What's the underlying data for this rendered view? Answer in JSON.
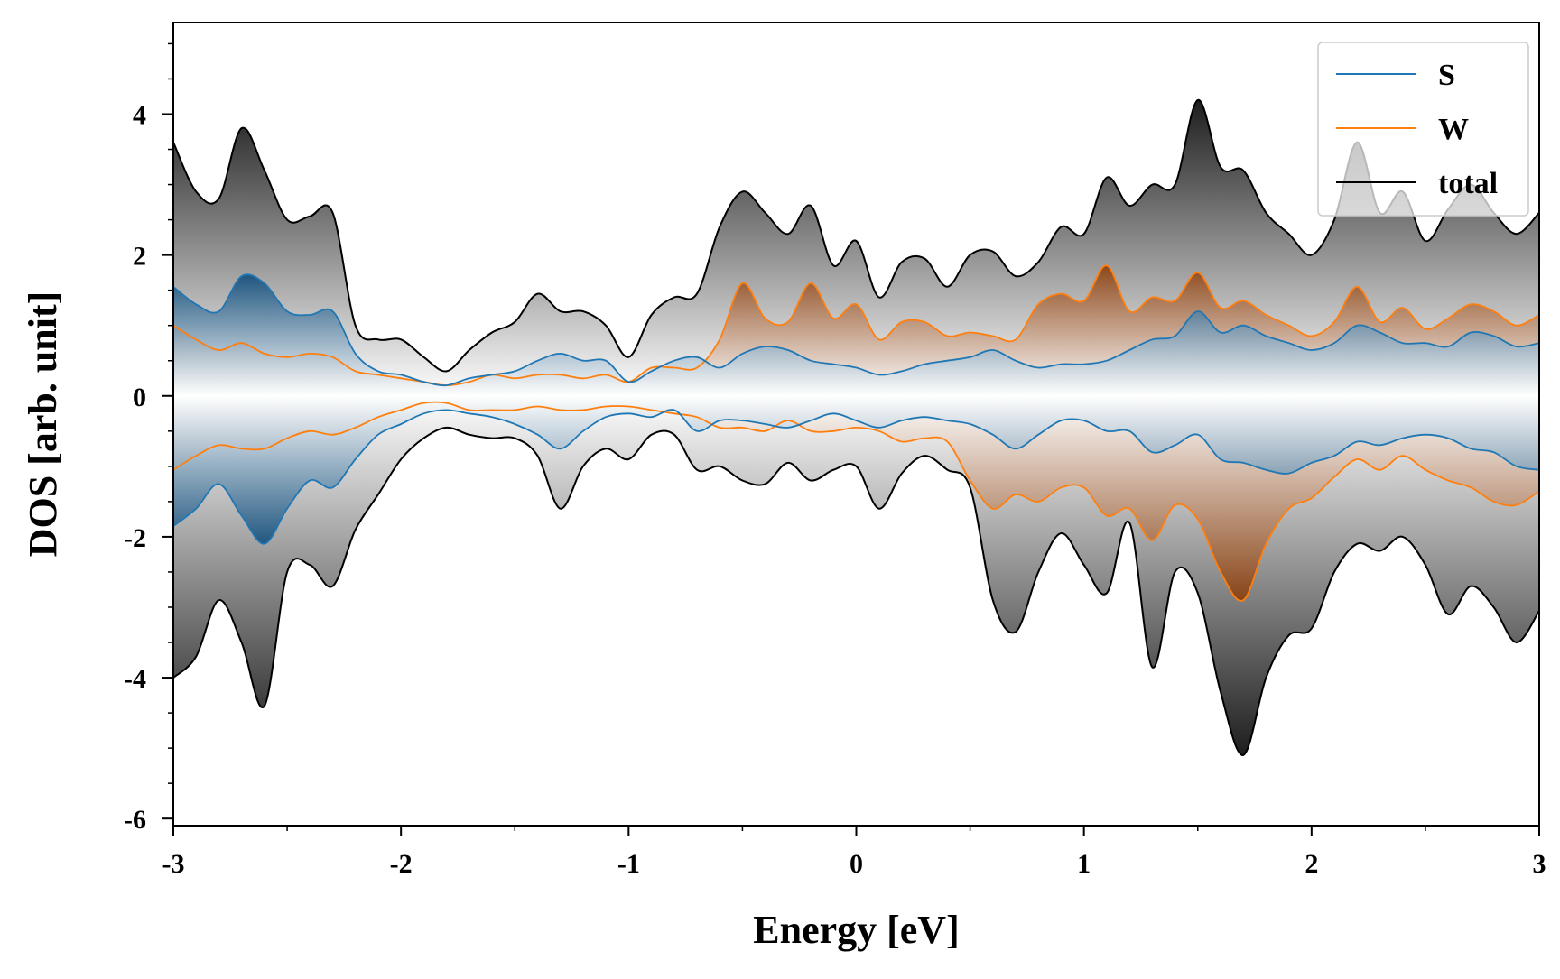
{
  "chart_data": {
    "type": "area",
    "title": "",
    "xlabel": "Energy [eV]",
    "ylabel": "DOS [arb. unit]",
    "xlim": [
      -3,
      3
    ],
    "ylim": [
      -6.1,
      5.3
    ],
    "xticks": [
      -3,
      -2,
      -1,
      0,
      1,
      2,
      3
    ],
    "xtick_labels": [
      "-3",
      "-2",
      "-1",
      "0",
      "1",
      "2",
      "3"
    ],
    "yticks": [
      -6,
      -4,
      -2,
      0,
      2,
      4
    ],
    "ytick_labels": [
      "-6",
      "-4",
      "-2",
      "0",
      "2",
      "4"
    ],
    "grid": false,
    "legend": "top-right",
    "fill": "vertical gradient from white at 0 to the series color at the extremes",
    "x": [
      -3.0,
      -2.9,
      -2.8,
      -2.7,
      -2.6,
      -2.5,
      -2.4,
      -2.3,
      -2.2,
      -2.1,
      -2.0,
      -1.9,
      -1.8,
      -1.7,
      -1.6,
      -1.5,
      -1.4,
      -1.3,
      -1.2,
      -1.1,
      -1.0,
      -0.9,
      -0.8,
      -0.7,
      -0.6,
      -0.5,
      -0.4,
      -0.3,
      -0.2,
      -0.1,
      0.0,
      0.1,
      0.2,
      0.3,
      0.4,
      0.5,
      0.6,
      0.7,
      0.8,
      0.9,
      1.0,
      1.1,
      1.2,
      1.3,
      1.4,
      1.5,
      1.6,
      1.7,
      1.8,
      1.9,
      2.0,
      2.1,
      2.2,
      2.3,
      2.4,
      2.5,
      2.6,
      2.7,
      2.8,
      2.9,
      3.0
    ],
    "series": [
      {
        "name": "S",
        "color": "#1f77b4",
        "up": [
          1.55,
          1.3,
          1.2,
          1.7,
          1.6,
          1.2,
          1.15,
          1.2,
          0.6,
          0.35,
          0.3,
          0.2,
          0.15,
          0.25,
          0.3,
          0.35,
          0.5,
          0.6,
          0.5,
          0.5,
          0.2,
          0.35,
          0.5,
          0.55,
          0.4,
          0.6,
          0.7,
          0.65,
          0.5,
          0.45,
          0.4,
          0.3,
          0.35,
          0.45,
          0.5,
          0.55,
          0.65,
          0.5,
          0.4,
          0.45,
          0.45,
          0.5,
          0.65,
          0.8,
          0.85,
          1.2,
          0.9,
          1.0,
          0.85,
          0.75,
          0.65,
          0.75,
          1.0,
          0.9,
          0.75,
          0.75,
          0.7,
          0.9,
          0.85,
          0.7,
          0.75
        ],
        "down": [
          -1.85,
          -1.6,
          -1.25,
          -1.7,
          -2.1,
          -1.6,
          -1.2,
          -1.3,
          -0.9,
          -0.55,
          -0.4,
          -0.25,
          -0.2,
          -0.25,
          -0.3,
          -0.4,
          -0.55,
          -0.75,
          -0.5,
          -0.3,
          -0.25,
          -0.3,
          -0.2,
          -0.5,
          -0.35,
          -0.35,
          -0.4,
          -0.45,
          -0.35,
          -0.25,
          -0.35,
          -0.45,
          -0.35,
          -0.3,
          -0.35,
          -0.4,
          -0.55,
          -0.75,
          -0.55,
          -0.35,
          -0.35,
          -0.5,
          -0.5,
          -0.8,
          -0.7,
          -0.55,
          -0.9,
          -0.95,
          -1.05,
          -1.1,
          -0.95,
          -0.85,
          -0.65,
          -0.7,
          -0.6,
          -0.55,
          -0.6,
          -0.75,
          -0.8,
          -1.0,
          -1.05
        ]
      },
      {
        "name": "W",
        "color": "#ff7f0e",
        "up": [
          1.0,
          0.8,
          0.65,
          0.75,
          0.6,
          0.55,
          0.6,
          0.55,
          0.35,
          0.3,
          0.25,
          0.2,
          0.15,
          0.2,
          0.3,
          0.25,
          0.3,
          0.3,
          0.25,
          0.3,
          0.2,
          0.4,
          0.4,
          0.4,
          0.8,
          1.6,
          1.1,
          1.05,
          1.6,
          1.1,
          1.3,
          0.8,
          1.05,
          1.05,
          0.85,
          0.9,
          0.85,
          0.8,
          1.3,
          1.45,
          1.35,
          1.85,
          1.2,
          1.4,
          1.35,
          1.75,
          1.25,
          1.35,
          1.15,
          1.0,
          0.85,
          1.05,
          1.55,
          1.05,
          1.25,
          0.95,
          1.1,
          1.3,
          1.2,
          1.0,
          1.15
        ],
        "down": [
          -1.05,
          -0.85,
          -0.7,
          -0.75,
          -0.75,
          -0.6,
          -0.5,
          -0.55,
          -0.45,
          -0.3,
          -0.2,
          -0.1,
          -0.1,
          -0.2,
          -0.2,
          -0.2,
          -0.15,
          -0.2,
          -0.2,
          -0.15,
          -0.15,
          -0.2,
          -0.25,
          -0.3,
          -0.45,
          -0.45,
          -0.5,
          -0.35,
          -0.5,
          -0.5,
          -0.45,
          -0.5,
          -0.65,
          -0.6,
          -0.65,
          -1.2,
          -1.6,
          -1.4,
          -1.5,
          -1.3,
          -1.3,
          -1.7,
          -1.6,
          -2.05,
          -1.55,
          -1.75,
          -2.5,
          -2.9,
          -2.1,
          -1.6,
          -1.45,
          -1.15,
          -0.9,
          -1.05,
          -0.85,
          -1.05,
          -1.2,
          -1.3,
          -1.5,
          -1.55,
          -1.35
        ]
      },
      {
        "name": "total",
        "color": "#000000",
        "up": [
          3.6,
          2.9,
          2.8,
          3.8,
          3.2,
          2.5,
          2.55,
          2.6,
          1.0,
          0.8,
          0.8,
          0.55,
          0.35,
          0.65,
          0.9,
          1.05,
          1.45,
          1.2,
          1.2,
          1.0,
          0.55,
          1.15,
          1.4,
          1.45,
          2.4,
          2.9,
          2.6,
          2.3,
          2.7,
          1.85,
          2.2,
          1.4,
          1.9,
          1.95,
          1.55,
          2.0,
          2.05,
          1.7,
          1.9,
          2.4,
          2.3,
          3.1,
          2.7,
          3.0,
          3.0,
          4.2,
          3.25,
          3.2,
          2.6,
          2.3,
          2.0,
          2.5,
          3.6,
          2.6,
          2.9,
          2.2,
          2.65,
          3.0,
          2.6,
          2.3,
          2.6
        ],
        "down": [
          -4.0,
          -3.7,
          -2.9,
          -3.5,
          -4.4,
          -2.5,
          -2.4,
          -2.7,
          -1.9,
          -1.4,
          -0.9,
          -0.6,
          -0.45,
          -0.55,
          -0.6,
          -0.6,
          -0.85,
          -1.6,
          -1.0,
          -0.75,
          -0.9,
          -0.55,
          -0.55,
          -1.05,
          -1.0,
          -1.2,
          -1.25,
          -0.95,
          -1.2,
          -1.05,
          -1.0,
          -1.6,
          -1.1,
          -0.85,
          -1.05,
          -1.3,
          -2.9,
          -3.35,
          -2.5,
          -1.95,
          -2.4,
          -2.8,
          -1.8,
          -3.85,
          -2.5,
          -2.8,
          -4.2,
          -5.1,
          -4.0,
          -3.4,
          -3.3,
          -2.5,
          -2.1,
          -2.2,
          -2.0,
          -2.4,
          -3.1,
          -2.7,
          -3.0,
          -3.5,
          -3.05
        ]
      }
    ]
  }
}
